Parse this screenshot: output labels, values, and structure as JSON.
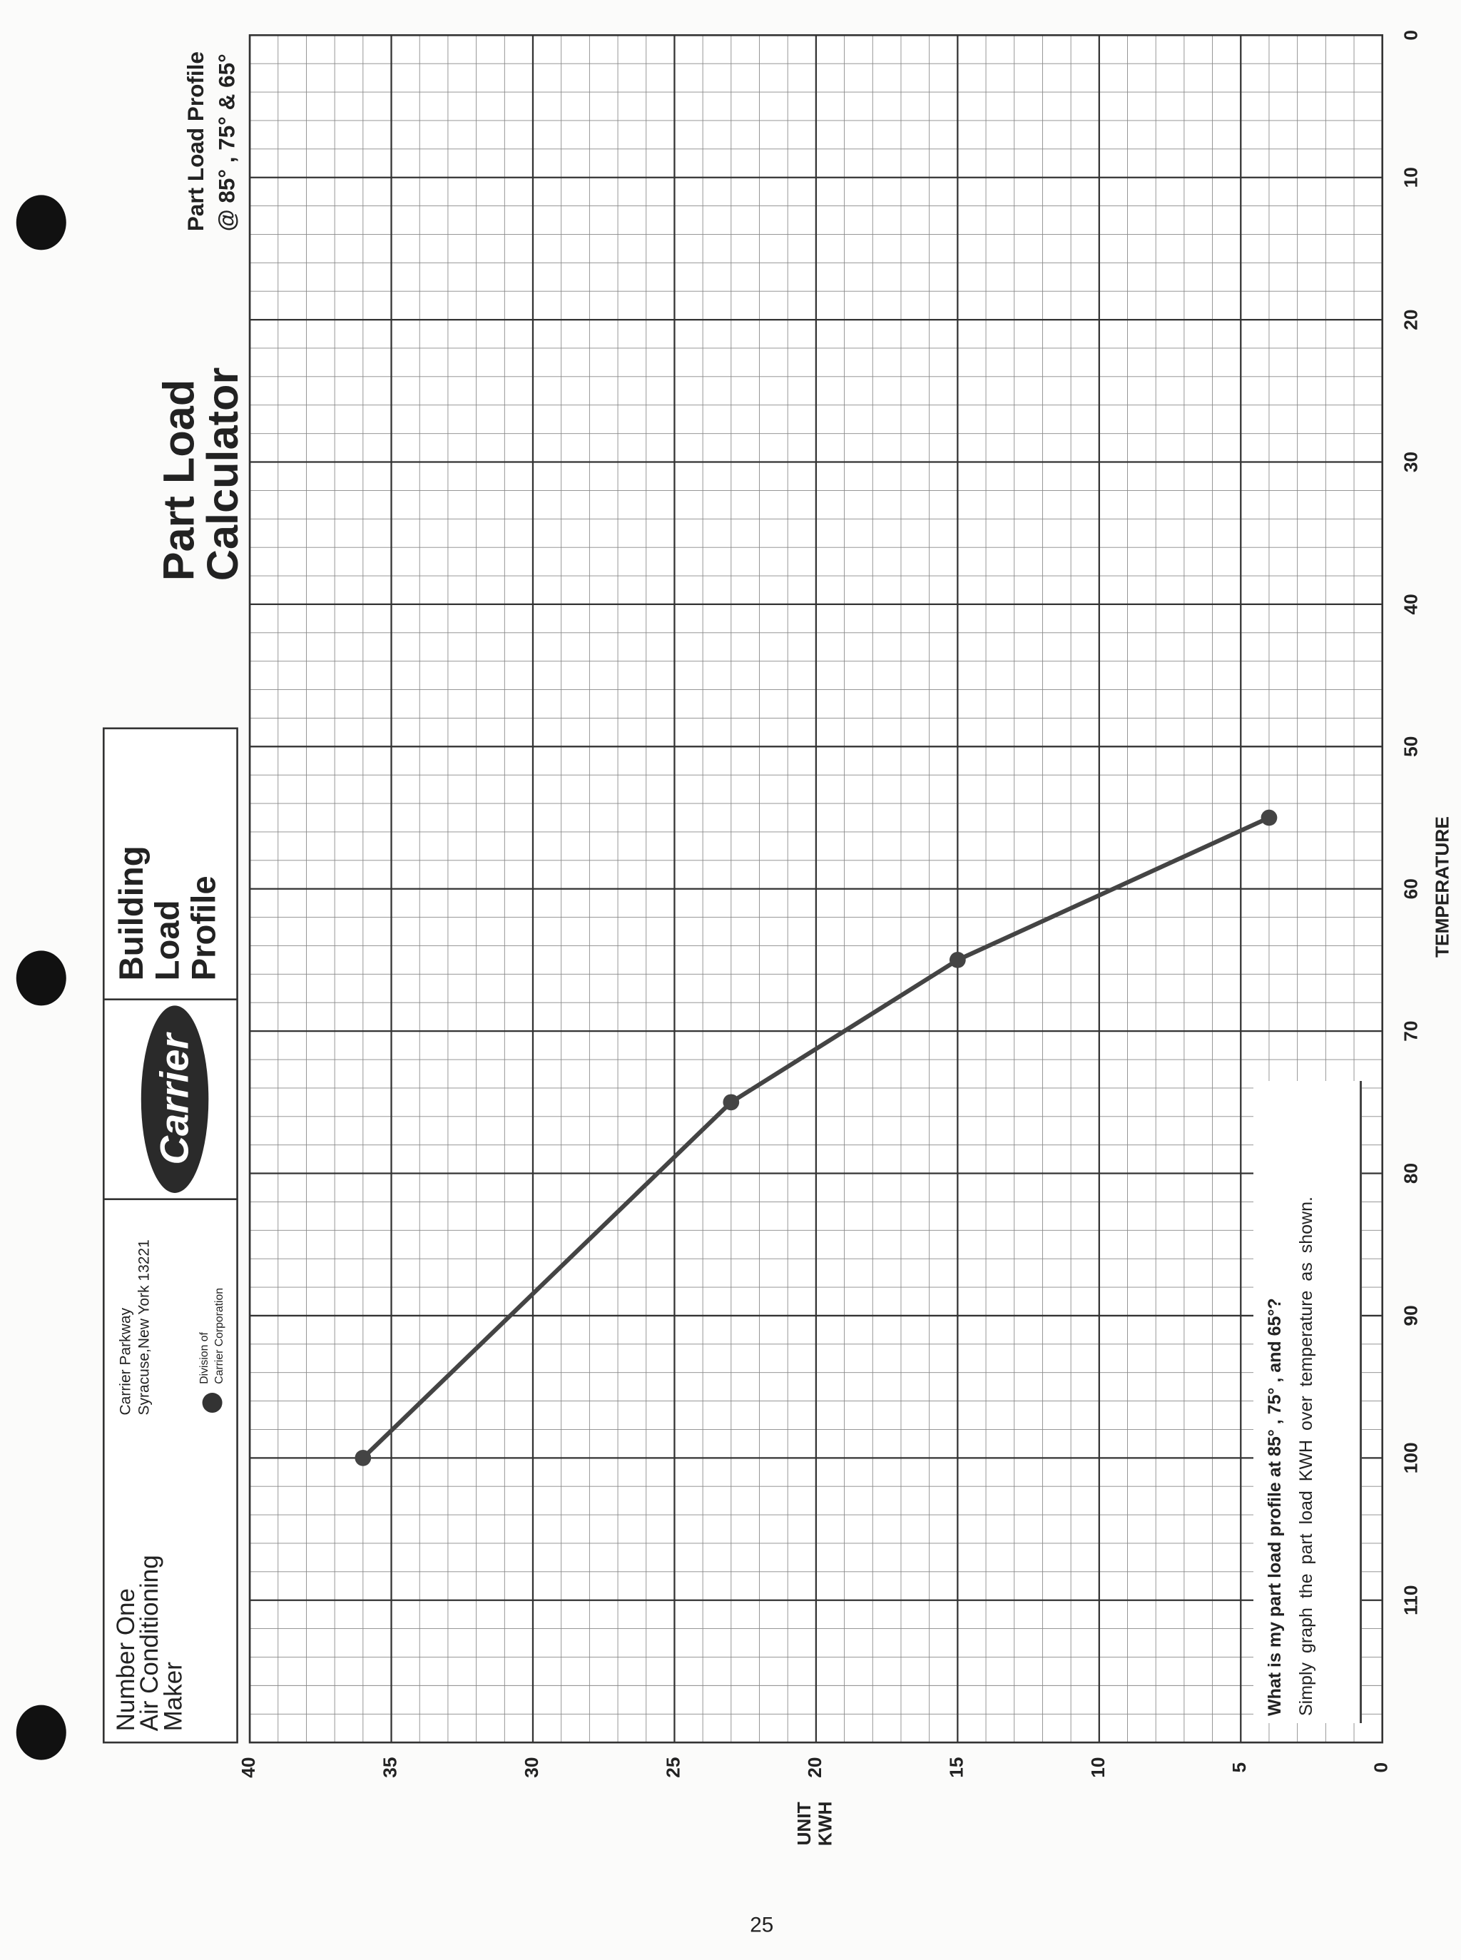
{
  "page_number": "25",
  "info_box": {
    "heading": [
      "Building",
      "Load",
      "Profile"
    ],
    "logo": "Carrier",
    "address": [
      "Carrier Parkway",
      "Syracuse,New York 13221"
    ],
    "division": [
      "Division of",
      "Carrier Corporation"
    ],
    "slogan": [
      "Number One",
      "Air Conditioning",
      "Maker"
    ]
  },
  "chart_data": {
    "type": "line",
    "title": [
      "Part Load",
      "Calculator"
    ],
    "subtitle": [
      "Part Load Profile",
      "@ 85° , 75° & 65°"
    ],
    "xlabel": "TEMPERATURE",
    "ylabel": [
      "UNIT",
      "KWH"
    ],
    "x": [
      100,
      75,
      65,
      55
    ],
    "values": [
      36,
      23,
      15,
      4
    ],
    "color": "#444444",
    "xlim": [
      0,
      120
    ],
    "xticks": [
      0,
      10,
      20,
      30,
      40,
      50,
      60,
      70,
      80,
      90,
      100,
      110
    ],
    "ylim": [
      0,
      40
    ],
    "yticks": [
      0,
      5,
      10,
      15,
      20,
      25,
      30,
      35,
      40
    ],
    "grid": true,
    "annotation": {
      "question": "What is my part load profile at 85° , 75° , and 65°?",
      "text": "Simply graph the part load KWH over temperature as shown."
    }
  }
}
